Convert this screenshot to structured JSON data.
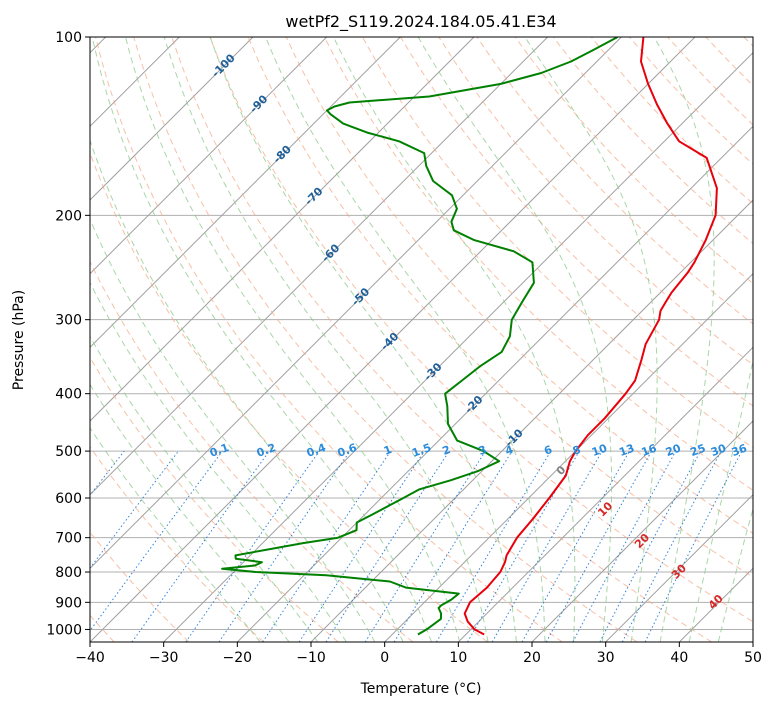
{
  "chart_data": {
    "type": "line",
    "title": "wetPf2_S119.2024.184.05.41.E34",
    "xlabel": "Temperature (°C)",
    "ylabel": "Pressure (hPa)",
    "xlim": [
      -40,
      50
    ],
    "ylim": [
      1050,
      100
    ],
    "y_scale": "log",
    "grid": true,
    "x_ticks": [
      -40,
      -30,
      -20,
      -10,
      0,
      10,
      20,
      30,
      40,
      50
    ],
    "y_ticks": [
      100,
      200,
      300,
      400,
      500,
      600,
      700,
      800,
      900,
      1000
    ],
    "colors": {
      "temperature": "#e8000b",
      "dewpoint": "#008000",
      "isotherm": "#a0a0a0",
      "dry_adiabat": "#f4a582",
      "moist_adiabat": "#8cc88c",
      "mixing_ratio": "#1f77d4",
      "isotherm_label": "#1f5f99",
      "dry_label": "#d62728"
    },
    "series": [
      {
        "key": "temperature",
        "points": [
          [
            12.5,
            1020
          ],
          [
            10.5,
            1000
          ],
          [
            8.5,
            970
          ],
          [
            7.0,
            940
          ],
          [
            6.2,
            900
          ],
          [
            6.3,
            880
          ],
          [
            6.5,
            850
          ],
          [
            6.2,
            800
          ],
          [
            5.5,
            770
          ],
          [
            4.8,
            750
          ],
          [
            3.8,
            700
          ],
          [
            3.4,
            650
          ],
          [
            2.8,
            600
          ],
          [
            2.0,
            550
          ],
          [
            0.6,
            520
          ],
          [
            0.0,
            500
          ],
          [
            -0.5,
            470
          ],
          [
            -0.5,
            440
          ],
          [
            -1.0,
            400
          ],
          [
            -1.5,
            380
          ],
          [
            -3.5,
            350
          ],
          [
            -5.0,
            330
          ],
          [
            -6.5,
            300
          ],
          [
            -7.5,
            290
          ],
          [
            -8.0,
            280
          ],
          [
            -8.5,
            270
          ],
          [
            -9.0,
            250
          ],
          [
            -9.5,
            240
          ],
          [
            -11.0,
            220
          ],
          [
            -13.0,
            200
          ],
          [
            -16.5,
            180
          ],
          [
            -22.0,
            160
          ],
          [
            -28.0,
            150
          ],
          [
            -32.0,
            140
          ],
          [
            -36.0,
            130
          ],
          [
            -40.0,
            120
          ],
          [
            -44.0,
            110
          ],
          [
            -47.0,
            100
          ]
        ]
      },
      {
        "key": "dewpoint",
        "points": [
          [
            3.5,
            1020
          ],
          [
            4.0,
            1000
          ],
          [
            4.5,
            960
          ],
          [
            3.8,
            940
          ],
          [
            2.7,
            920
          ],
          [
            2.7,
            910
          ],
          [
            3.3,
            890
          ],
          [
            3.5,
            870
          ],
          [
            -4.5,
            850
          ],
          [
            -7.5,
            830
          ],
          [
            -17.0,
            810
          ],
          [
            -27.0,
            800
          ],
          [
            -32.0,
            790
          ],
          [
            -28.0,
            780
          ],
          [
            -27.5,
            770
          ],
          [
            -31.5,
            760
          ],
          [
            -32.0,
            750
          ],
          [
            -24.5,
            715
          ],
          [
            -20.5,
            700
          ],
          [
            -19.0,
            680
          ],
          [
            -20.0,
            660
          ],
          [
            -19.0,
            640
          ],
          [
            -18.0,
            620
          ],
          [
            -17.0,
            600
          ],
          [
            -16.0,
            580
          ],
          [
            -13.0,
            560
          ],
          [
            -10.5,
            540
          ],
          [
            -9.0,
            520
          ],
          [
            -12.5,
            500
          ],
          [
            -17.5,
            480
          ],
          [
            -21.0,
            450
          ],
          [
            -23.5,
            420
          ],
          [
            -25.5,
            400
          ],
          [
            -25.0,
            380
          ],
          [
            -24.5,
            360
          ],
          [
            -23.5,
            340
          ],
          [
            -24.5,
            320
          ],
          [
            -26.5,
            300
          ],
          [
            -27.5,
            280
          ],
          [
            -28.5,
            260
          ],
          [
            -31.5,
            240
          ],
          [
            -35.5,
            230
          ],
          [
            -42.5,
            220
          ],
          [
            -46.5,
            212
          ],
          [
            -48.0,
            205
          ],
          [
            -49.0,
            195
          ],
          [
            -51.5,
            185
          ],
          [
            -56.0,
            175
          ],
          [
            -59.0,
            165
          ],
          [
            -61.0,
            157
          ],
          [
            -66.0,
            150
          ],
          [
            -71.5,
            145
          ],
          [
            -76.0,
            140
          ],
          [
            -79.0,
            135
          ],
          [
            -80.0,
            133
          ],
          [
            -79.5,
            131
          ],
          [
            -78.0,
            129
          ],
          [
            -68.0,
            126
          ],
          [
            -60.0,
            120
          ],
          [
            -56.0,
            115
          ],
          [
            -53.5,
            110
          ],
          [
            -52.0,
            105
          ],
          [
            -50.5,
            100
          ]
        ]
      }
    ],
    "isotherm_labels": [
      "-100",
      "-90",
      "-80",
      "-70",
      "-60",
      "-50",
      "-40",
      "-30",
      "-20",
      "-10"
    ],
    "mixing_ratio_labels": [
      "0.1",
      "0.2",
      "0.4",
      "0.6",
      "1",
      "1.5",
      "2",
      "3",
      "4",
      "6",
      "8",
      "10",
      "13",
      "16",
      "20",
      "25",
      "30",
      "36"
    ],
    "dry_adiabat_labels": [
      "0",
      "10",
      "20",
      "30",
      "40"
    ]
  }
}
